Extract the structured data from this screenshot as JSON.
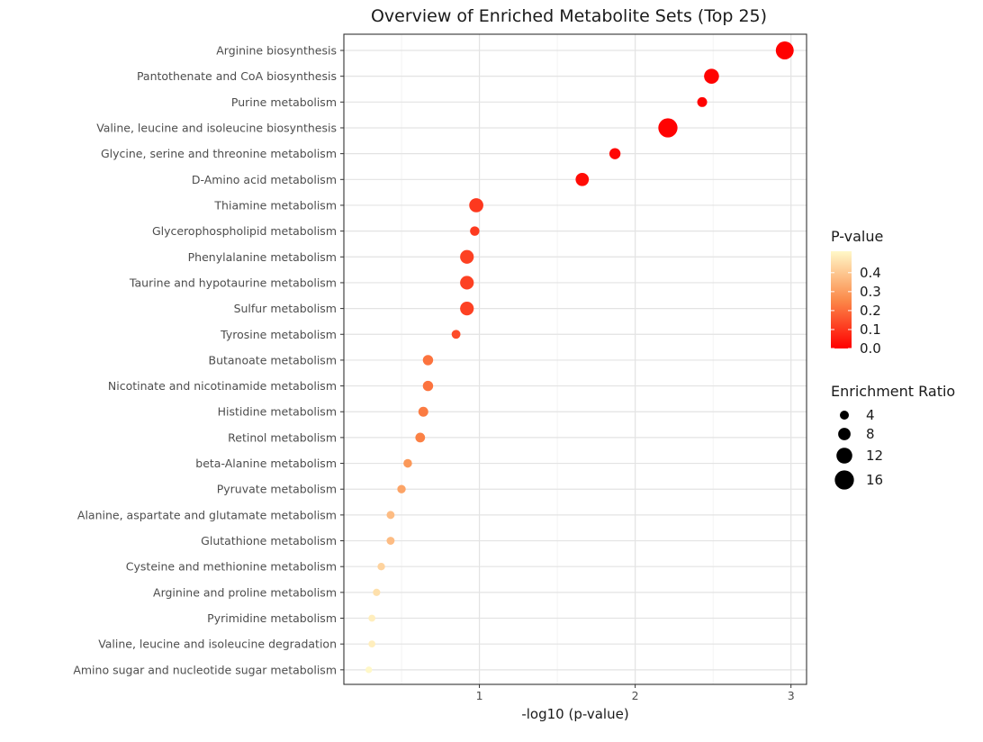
{
  "chart_data": {
    "type": "scatter",
    "title": "Overview of Enriched Metabolite Sets (Top 25)",
    "xlabel": "-log10 (p-value)",
    "ylabel": "",
    "xlim": [
      0.13,
      3.1
    ],
    "xticks": [
      1,
      2,
      3
    ],
    "grid": true,
    "legend_position": "right",
    "points": [
      {
        "name": "Arginine biosynthesis",
        "x": 2.96,
        "p": 0.0011,
        "ratio": 14.5
      },
      {
        "name": "Pantothenate and CoA biosynthesis",
        "x": 2.49,
        "p": 0.0032,
        "ratio": 11.0
      },
      {
        "name": "Purine metabolism",
        "x": 2.43,
        "p": 0.0037,
        "ratio": 5.0
      },
      {
        "name": "Valine, leucine and isoleucine biosynthesis",
        "x": 2.21,
        "p": 0.0062,
        "ratio": 16.0
      },
      {
        "name": "Glycine, serine and threonine metabolism",
        "x": 1.87,
        "p": 0.0135,
        "ratio": 6.5
      },
      {
        "name": "D-Amino acid metabolism",
        "x": 1.66,
        "p": 0.022,
        "ratio": 9.0
      },
      {
        "name": "Thiamine metabolism",
        "x": 0.98,
        "p": 0.105,
        "ratio": 10.0
      },
      {
        "name": "Glycerophospholipid metabolism",
        "x": 0.97,
        "p": 0.107,
        "ratio": 4.5
      },
      {
        "name": "Phenylalanine metabolism",
        "x": 0.92,
        "p": 0.12,
        "ratio": 9.5
      },
      {
        "name": "Taurine and hypotaurine metabolism",
        "x": 0.92,
        "p": 0.12,
        "ratio": 9.5
      },
      {
        "name": "Sulfur metabolism",
        "x": 0.92,
        "p": 0.12,
        "ratio": 9.5
      },
      {
        "name": "Tyrosine metabolism",
        "x": 0.85,
        "p": 0.141,
        "ratio": 3.8
      },
      {
        "name": "Butanoate metabolism",
        "x": 0.67,
        "p": 0.214,
        "ratio": 5.5
      },
      {
        "name": "Nicotinate and nicotinamide metabolism",
        "x": 0.67,
        "p": 0.214,
        "ratio": 5.5
      },
      {
        "name": "Histidine metabolism",
        "x": 0.64,
        "p": 0.229,
        "ratio": 5.0
      },
      {
        "name": "Retinol metabolism",
        "x": 0.62,
        "p": 0.24,
        "ratio": 4.8
      },
      {
        "name": "beta-Alanine metabolism",
        "x": 0.54,
        "p": 0.288,
        "ratio": 3.5
      },
      {
        "name": "Pyruvate metabolism",
        "x": 0.5,
        "p": 0.316,
        "ratio": 3.3
      },
      {
        "name": "Alanine, aspartate and glutamate metabolism",
        "x": 0.43,
        "p": 0.372,
        "ratio": 2.8
      },
      {
        "name": "Glutathione metabolism",
        "x": 0.43,
        "p": 0.372,
        "ratio": 2.8
      },
      {
        "name": "Cysteine and methionine metabolism",
        "x": 0.37,
        "p": 0.427,
        "ratio": 2.2
      },
      {
        "name": "Arginine and proline metabolism",
        "x": 0.34,
        "p": 0.457,
        "ratio": 2.0
      },
      {
        "name": "Pyrimidine metabolism",
        "x": 0.31,
        "p": 0.49,
        "ratio": 1.6
      },
      {
        "name": "Valine, leucine and isoleucine degradation",
        "x": 0.31,
        "p": 0.49,
        "ratio": 1.6
      },
      {
        "name": "Amino sugar and nucleotide sugar metabolism",
        "x": 0.29,
        "p": 0.513,
        "ratio": 1.2
      }
    ],
    "color_legend": {
      "title": "P-value",
      "labels": [
        "0.4",
        "0.3",
        "0.2",
        "0.1",
        "0.0"
      ],
      "values": [
        0.4,
        0.3,
        0.2,
        0.1,
        0.0
      ],
      "range": [
        0.0,
        0.513
      ],
      "color_low": "#ff0000",
      "color_mid": "#fb8a4a",
      "color_high": "#fff8c8"
    },
    "size_legend": {
      "title": "Enrichment Ratio",
      "labels": [
        "4",
        "8",
        "12",
        "16"
      ],
      "values": [
        4,
        8,
        12,
        16
      ]
    }
  }
}
